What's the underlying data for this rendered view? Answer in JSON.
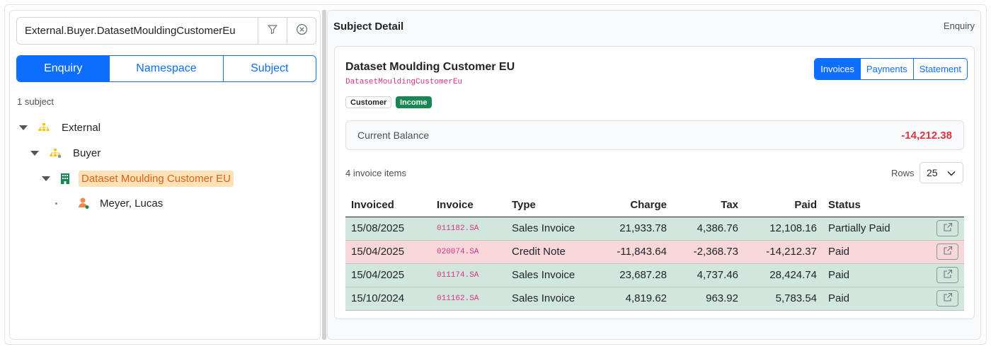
{
  "search": {
    "value": "External.Buyer.DatasetMouldingCustomerEu"
  },
  "modes": [
    "Enquiry",
    "Namespace",
    "Subject"
  ],
  "subject_count": "1 subject",
  "tree": {
    "external": "External",
    "buyer": "Buyer",
    "customer": "Dataset Moulding Customer EU",
    "contact": "Meyer, Lucas"
  },
  "detail": {
    "title": "Subject Detail",
    "mode": "Enquiry",
    "name": "Dataset Moulding Customer EU",
    "code": "DatasetMouldingCustomerEu",
    "badges": [
      "Customer",
      "Income"
    ],
    "tabs": [
      "Invoices",
      "Payments",
      "Statement"
    ],
    "balance_label": "Current Balance",
    "balance_value": "-14,212.38",
    "items_count": "4 invoice items",
    "rows_label": "Rows",
    "rows_value": "25"
  },
  "table": {
    "headers": [
      "Invoiced",
      "Invoice",
      "Type",
      "Charge",
      "Tax",
      "Paid",
      "Status"
    ],
    "rows": [
      {
        "date": "15/08/2025",
        "invoice": "011182.SA",
        "type": "Sales Invoice",
        "charge": "21,933.78",
        "tax": "4,386.76",
        "paid": "12,108.16",
        "status": "Partially Paid"
      },
      {
        "date": "15/04/2025",
        "invoice": "020074.SA",
        "type": "Credit Note",
        "charge": "-11,843.64",
        "tax": "-2,368.73",
        "paid": "-14,212.37",
        "status": "Paid"
      },
      {
        "date": "15/04/2025",
        "invoice": "011174.SA",
        "type": "Sales Invoice",
        "charge": "23,687.28",
        "tax": "4,737.46",
        "paid": "28,424.74",
        "status": "Paid"
      },
      {
        "date": "15/10/2024",
        "invoice": "011162.SA",
        "type": "Sales Invoice",
        "charge": "4,819.62",
        "tax": "963.92",
        "paid": "5,783.54",
        "status": "Paid"
      }
    ]
  },
  "colors": {
    "primary": "#0d6efd",
    "row_green": "#d1e7dd",
    "row_red": "#f8d7da",
    "negative": "#dc3545",
    "code": "#d63384"
  }
}
